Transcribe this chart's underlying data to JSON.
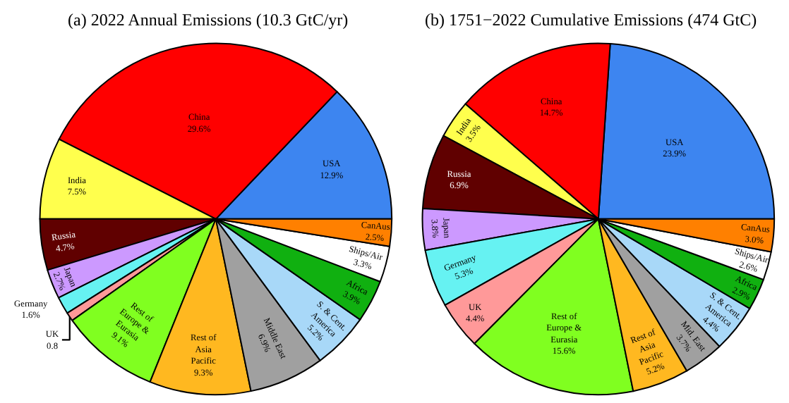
{
  "chart_data": [
    {
      "type": "pie",
      "title": "(a) 2022 Annual Emissions (10.3 GtC/yr)",
      "legend": false,
      "categories": [
        "USA",
        "China",
        "India",
        "Russia",
        "Japan",
        "Germany",
        "UK",
        "Rest of Europe & Eurasia",
        "Rest of Asia Pacific",
        "Middle East",
        "S. & Cent. America",
        "Africa",
        "Ships/Air",
        "CanAus"
      ],
      "values": [
        12.9,
        29.6,
        7.5,
        4.7,
        2.7,
        1.6,
        0.8,
        9.1,
        9.3,
        6.9,
        5.2,
        3.9,
        3.3,
        2.5
      ],
      "value_labels": [
        "12.9%",
        "29.6%",
        "7.5%",
        "4.7%",
        "2.7%",
        "1.6%",
        "0.8",
        "9.1%",
        "9.3%",
        "6.9%",
        "5.2%",
        "3.9%",
        "3.3%",
        "2.5%"
      ],
      "colors": [
        "#3d85f0",
        "#ff0000",
        "#ffff4d",
        "#600000",
        "#cc99ff",
        "#66f2f2",
        "#ff9999",
        "#80ff20",
        "#ffb820",
        "#a0a0a0",
        "#a8d8f8",
        "#10b010",
        "#ffffff",
        "#ff8000"
      ]
    },
    {
      "type": "pie",
      "title": "(b) 1751−2022 Cumulative Emissions (474 GtC)",
      "legend": false,
      "categories": [
        "USA",
        "China",
        "India",
        "Russia",
        "Japan",
        "Germany",
        "UK",
        "Rest of Europe & Eurasia",
        "Rest of Asia Pacific",
        "Mid. East",
        "S. & Cent. America",
        "Africa",
        "Ships/Air",
        "CanAus"
      ],
      "values": [
        23.9,
        14.7,
        3.5,
        6.9,
        3.8,
        5.3,
        4.4,
        15.6,
        5.2,
        3.7,
        4.4,
        2.9,
        2.6,
        3.0
      ],
      "value_labels": [
        "23.9%",
        "14.7%",
        "3.5%",
        "6.9%",
        "3.8%",
        "5.3%",
        "4.4%",
        "15.6%",
        "5.2%",
        "3.7%",
        "4.4%",
        "2.9%",
        "2.6%",
        "3.0%"
      ],
      "colors": [
        "#3d85f0",
        "#ff0000",
        "#ffff4d",
        "#600000",
        "#cc99ff",
        "#66f2f2",
        "#ff9999",
        "#80ff20",
        "#ffb820",
        "#a0a0a0",
        "#a8d8f8",
        "#10b010",
        "#ffffff",
        "#ff8000"
      ]
    }
  ]
}
